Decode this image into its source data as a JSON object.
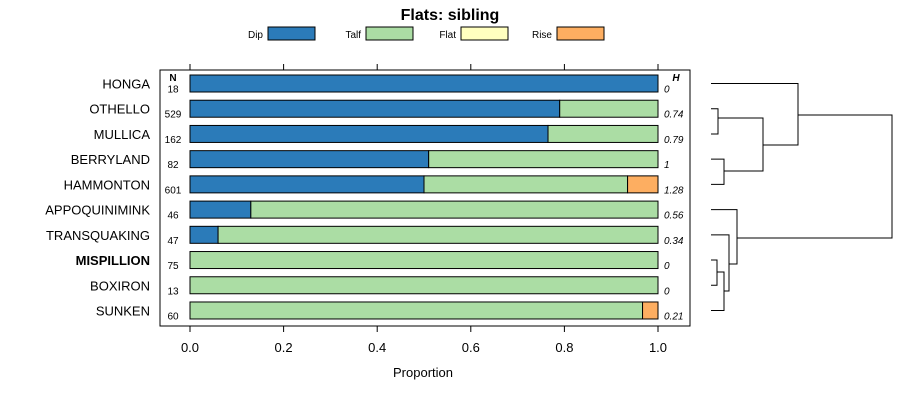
{
  "chart_data": {
    "type": "bar",
    "orientation": "horizontal",
    "stacked": true,
    "title": "Flats: sibling",
    "xlabel": "Proportion",
    "ylabel": "",
    "xlim": [
      0,
      1
    ],
    "xticks": [
      "0.0",
      "0.2",
      "0.4",
      "0.6",
      "0.8",
      "1.0"
    ],
    "legend_position": "top",
    "series": [
      {
        "name": "Dip",
        "color": "#2b7bb9"
      },
      {
        "name": "Talf",
        "color": "#abdda4"
      },
      {
        "name": "Flat",
        "color": "#ffffbf"
      },
      {
        "name": "Rise",
        "color": "#fdae61"
      }
    ],
    "column_headers": {
      "n": "N",
      "h": "H"
    },
    "rows": [
      {
        "label": "HONGA",
        "n": "18",
        "h": "0",
        "bold": false,
        "values": [
          1.0,
          0.0,
          0.0,
          0.0
        ]
      },
      {
        "label": "OTHELLO",
        "n": "529",
        "h": "0.74",
        "bold": false,
        "values": [
          0.79,
          0.21,
          0.0,
          0.0
        ]
      },
      {
        "label": "MULLICA",
        "n": "162",
        "h": "0.79",
        "bold": false,
        "values": [
          0.765,
          0.235,
          0.0,
          0.0
        ]
      },
      {
        "label": "BERRYLAND",
        "n": "82",
        "h": "1",
        "bold": false,
        "values": [
          0.51,
          0.49,
          0.0,
          0.0
        ]
      },
      {
        "label": "HAMMONTON",
        "n": "601",
        "h": "1.28",
        "bold": false,
        "values": [
          0.5,
          0.435,
          0.0,
          0.065
        ]
      },
      {
        "label": "APPOQUINIMINK",
        "n": "46",
        "h": "0.56",
        "bold": false,
        "values": [
          0.13,
          0.87,
          0.0,
          0.0
        ]
      },
      {
        "label": "TRANSQUAKING",
        "n": "47",
        "h": "0.34",
        "bold": false,
        "values": [
          0.06,
          0.94,
          0.0,
          0.0
        ]
      },
      {
        "label": "MISPILLION",
        "n": "75",
        "h": "0",
        "bold": true,
        "values": [
          0.0,
          1.0,
          0.0,
          0.0
        ]
      },
      {
        "label": "BOXIRON",
        "n": "13",
        "h": "0",
        "bold": false,
        "values": [
          0.0,
          1.0,
          0.0,
          0.0
        ]
      },
      {
        "label": "SUNKEN",
        "n": "60",
        "h": "0.21",
        "bold": false,
        "values": [
          0.0,
          0.967,
          0.0,
          0.033
        ]
      }
    ]
  }
}
